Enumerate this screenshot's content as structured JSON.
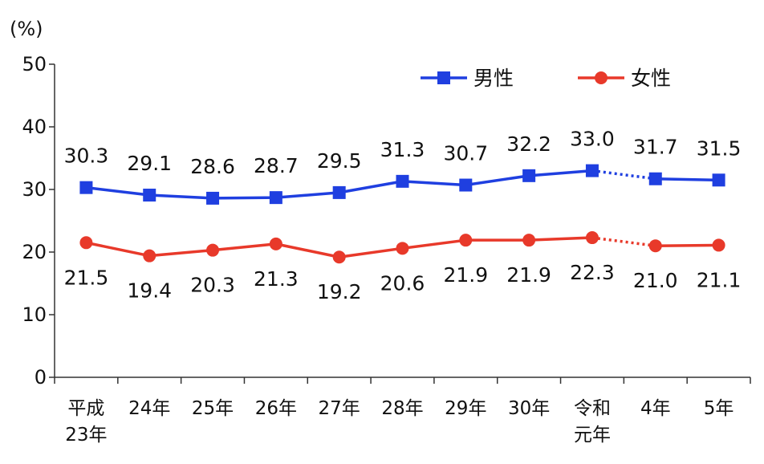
{
  "chart_data": {
    "type": "line",
    "ylabel": "(%)",
    "ylim": [
      0,
      50
    ],
    "yticks": [
      0,
      10,
      20,
      30,
      40,
      50
    ],
    "categories": [
      [
        "平成",
        "23年"
      ],
      [
        "24年"
      ],
      [
        "25年"
      ],
      [
        "26年"
      ],
      [
        "27年"
      ],
      [
        "28年"
      ],
      [
        "29年"
      ],
      [
        "30年"
      ],
      [
        "令和",
        "元年"
      ],
      [
        "4年"
      ],
      [
        "5年"
      ]
    ],
    "gap_after_index": 8,
    "legend_position": "top-right",
    "series": [
      {
        "name": "男性",
        "color": "#1f3fe0",
        "marker": "square",
        "label_position": "above",
        "values": [
          30.3,
          29.1,
          28.6,
          28.7,
          29.5,
          31.3,
          30.7,
          32.2,
          33.0,
          31.7,
          31.5
        ],
        "labels": [
          "30.3",
          "29.1",
          "28.6",
          "28.7",
          "29.5",
          "31.3",
          "30.7",
          "32.2",
          "33.0",
          "31.7",
          "31.5"
        ]
      },
      {
        "name": "女性",
        "color": "#e8392a",
        "marker": "circle",
        "label_position": "below",
        "values": [
          21.5,
          19.4,
          20.3,
          21.3,
          19.2,
          20.6,
          21.9,
          21.9,
          22.3,
          21.0,
          21.1
        ],
        "labels": [
          "21.5",
          "19.4",
          "20.3",
          "21.3",
          "19.2",
          "20.6",
          "21.9",
          "21.9",
          "22.3",
          "21.0",
          "21.1"
        ]
      }
    ]
  }
}
